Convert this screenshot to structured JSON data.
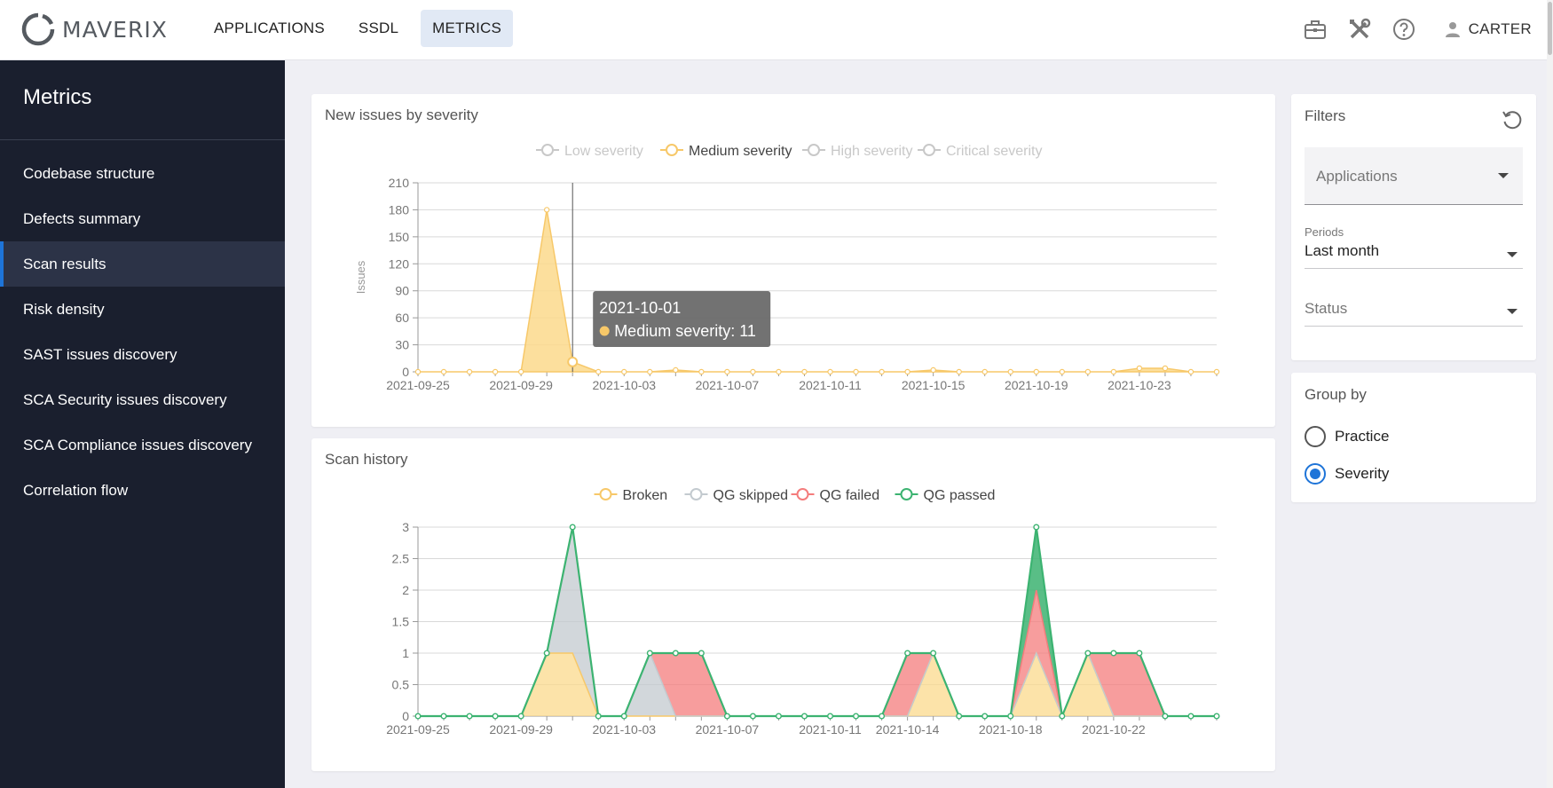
{
  "header": {
    "logo_text": "MAVERIX",
    "nav": [
      {
        "label": "APPLICATIONS",
        "active": false
      },
      {
        "label": "SSDL",
        "active": false
      },
      {
        "label": "METRICS",
        "active": true
      }
    ],
    "icons": [
      "briefcase-icon",
      "tools-icon",
      "help-icon"
    ],
    "user": "CARTER"
  },
  "sidebar": {
    "title": "Metrics",
    "items": [
      {
        "label": "Codebase structure",
        "active": false
      },
      {
        "label": "Defects summary",
        "active": false
      },
      {
        "label": "Scan results",
        "active": true
      },
      {
        "label": "Risk density",
        "active": false
      },
      {
        "label": "SAST issues discovery",
        "active": false
      },
      {
        "label": "SCA Security issues discovery",
        "active": false
      },
      {
        "label": "SCA Compliance issues discovery",
        "active": false
      },
      {
        "label": "Correlation flow",
        "active": false
      }
    ]
  },
  "filters": {
    "title": "Filters",
    "applications_placeholder": "Applications",
    "periods_label": "Periods",
    "periods_value": "Last month",
    "status_placeholder": "Status"
  },
  "group_by": {
    "title": "Group by",
    "options": [
      {
        "label": "Practice",
        "selected": false
      },
      {
        "label": "Severity",
        "selected": true
      }
    ]
  },
  "colors": {
    "medium": "#f7c869",
    "medium_fill": "#fbd98c",
    "legend_disabled": "#c8c8c8",
    "qg_skipped": "#c3cacf",
    "qg_failed": "#f47c7c",
    "qg_passed": "#3cb371",
    "accent": "#1e74d8"
  },
  "chart_data": [
    {
      "type": "area",
      "title": "New issues by severity",
      "ylabel": "Issues",
      "xlabel": "",
      "ylim": [
        0,
        210
      ],
      "yticks": [
        0,
        30,
        60,
        90,
        120,
        150,
        180,
        210
      ],
      "x": [
        "2021-09-25",
        "2021-09-26",
        "2021-09-27",
        "2021-09-28",
        "2021-09-29",
        "2021-09-30",
        "2021-10-01",
        "2021-10-02",
        "2021-10-03",
        "2021-10-04",
        "2021-10-05",
        "2021-10-06",
        "2021-10-07",
        "2021-10-08",
        "2021-10-09",
        "2021-10-10",
        "2021-10-11",
        "2021-10-12",
        "2021-10-13",
        "2021-10-14",
        "2021-10-15",
        "2021-10-16",
        "2021-10-17",
        "2021-10-18",
        "2021-10-19",
        "2021-10-20",
        "2021-10-21",
        "2021-10-22",
        "2021-10-23",
        "2021-10-24",
        "2021-10-25",
        "2021-10-26"
      ],
      "xtick_labels": [
        "2021-09-25",
        "2021-09-29",
        "2021-10-03",
        "2021-10-07",
        "2021-10-11",
        "2021-10-15",
        "2021-10-19",
        "2021-10-23"
      ],
      "legend": [
        {
          "name": "Low severity",
          "enabled": false
        },
        {
          "name": "Medium severity",
          "enabled": true
        },
        {
          "name": "High severity",
          "enabled": false
        },
        {
          "name": "Critical severity",
          "enabled": false
        }
      ],
      "series": [
        {
          "name": "Medium severity",
          "values": [
            0,
            0,
            0,
            0,
            0,
            180,
            11,
            0,
            0,
            0,
            2,
            0,
            0,
            0,
            0,
            0,
            0,
            0,
            0,
            0,
            2,
            0,
            0,
            0,
            0,
            0,
            0,
            0,
            4,
            4,
            0,
            0
          ]
        }
      ],
      "tooltip": {
        "date": "2021-10-01",
        "text": "Medium severity: 11"
      },
      "grid": true,
      "legend_position": "top-center"
    },
    {
      "type": "area",
      "title": "Scan history",
      "xlabel": "",
      "ylabel": "",
      "ylim": [
        0,
        3
      ],
      "yticks": [
        "0",
        "0.5",
        "1",
        "1.5",
        "2",
        "2.5",
        "3"
      ],
      "x": [
        "2021-09-25",
        "2021-09-26",
        "2021-09-27",
        "2021-09-28",
        "2021-09-29",
        "2021-09-30",
        "2021-10-01",
        "2021-10-02",
        "2021-10-03",
        "2021-10-04",
        "2021-10-05",
        "2021-10-06",
        "2021-10-07",
        "2021-10-08",
        "2021-10-09",
        "2021-10-10",
        "2021-10-11",
        "2021-10-12",
        "2021-10-13",
        "2021-10-14",
        "2021-10-15",
        "2021-10-16",
        "2021-10-17",
        "2021-10-18",
        "2021-10-19",
        "2021-10-20",
        "2021-10-21",
        "2021-10-22",
        "2021-10-23",
        "2021-10-24",
        "2021-10-25",
        "2021-10-26"
      ],
      "xtick_labels": [
        "2021-09-25",
        "2021-09-29",
        "2021-10-03",
        "2021-10-07",
        "2021-10-11",
        "2021-10-14",
        "2021-10-18",
        "2021-10-22"
      ],
      "legend": [
        {
          "name": "Broken",
          "enabled": true
        },
        {
          "name": "QG skipped",
          "enabled": true
        },
        {
          "name": "QG failed",
          "enabled": true
        },
        {
          "name": "QG passed",
          "enabled": true
        }
      ],
      "stacked": true,
      "series": [
        {
          "name": "Broken",
          "values": [
            0,
            0,
            0,
            0,
            0,
            1,
            1,
            0,
            0,
            0,
            0,
            0,
            0,
            0,
            0,
            0,
            0,
            0,
            0,
            0,
            1,
            0,
            0,
            0,
            1,
            0,
            1,
            0,
            0,
            0,
            0,
            0
          ]
        },
        {
          "name": "QG skipped",
          "values": [
            0,
            0,
            0,
            0,
            0,
            0,
            2,
            0,
            0,
            1,
            0,
            0,
            0,
            0,
            0,
            0,
            0,
            0,
            0,
            0,
            0,
            0,
            0,
            0,
            0,
            0,
            0,
            0,
            0,
            0,
            0,
            0
          ]
        },
        {
          "name": "QG failed",
          "values": [
            0,
            0,
            0,
            0,
            0,
            0,
            0,
            0,
            0,
            0,
            1,
            1,
            0,
            0,
            0,
            0,
            0,
            0,
            0,
            1,
            0,
            0,
            0,
            0,
            1,
            0,
            0,
            1,
            1,
            0,
            0,
            0
          ]
        },
        {
          "name": "QG passed",
          "values": [
            0,
            0,
            0,
            0,
            0,
            0,
            0,
            0,
            0,
            0,
            0,
            0,
            0,
            0,
            0,
            0,
            0,
            0,
            0,
            0,
            0,
            0,
            0,
            0,
            1,
            0,
            0,
            0,
            0,
            0,
            0,
            0
          ]
        }
      ],
      "grid": true,
      "legend_position": "top-center"
    }
  ]
}
